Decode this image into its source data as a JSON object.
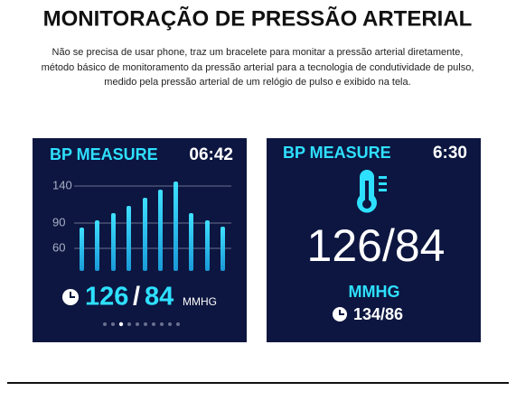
{
  "header": {
    "title": "MONITORAÇÃO DE PRESSÃO ARTERIAL",
    "description": [
      "Não se precisa de usar phone, traz um bracelete para monitar a pressão arterial diretamente,",
      "método básico de monitoramento da pressão arterial para a tecnologia de condutividade de pulso,",
      "medido pela pressão arterial de um relógio de pulso e exibido na tela."
    ]
  },
  "screens": [
    {
      "label": "BP MEASURE",
      "time": "06:42",
      "axis_labels": [
        "140",
        "90",
        "60"
      ],
      "systolic": "126",
      "separator": "/",
      "diastolic": "84",
      "unit": "MMHG"
    },
    {
      "label": "BP MEASURE",
      "time": "6:30",
      "reading": "126/84",
      "unit": "MMHG",
      "previous": "134/86"
    }
  ]
}
